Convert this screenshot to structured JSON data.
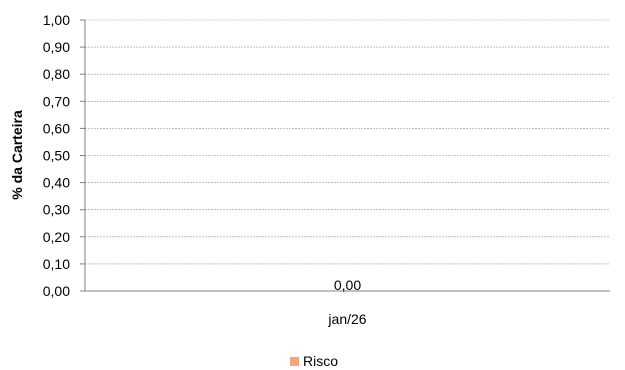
{
  "chart_data": {
    "type": "bar",
    "title": "",
    "xlabel": "",
    "ylabel": "% da Carteira",
    "categories": [
      "jan/26"
    ],
    "series": [
      {
        "name": "Risco",
        "values": [
          0.0
        ],
        "data_labels": [
          "0,00"
        ],
        "color": "#F4A582"
      }
    ],
    "ylim": [
      0,
      1
    ],
    "y_ticks": [
      0,
      0.1,
      0.2,
      0.3,
      0.4,
      0.5,
      0.6,
      0.7,
      0.8,
      0.9,
      1.0
    ],
    "y_tick_labels": [
      "0,00",
      "0,10",
      "0,20",
      "0,30",
      "0,40",
      "0,50",
      "0,60",
      "0,70",
      "0,80",
      "0,90",
      "1,00"
    ],
    "grid": true,
    "legend_position": "bottom"
  }
}
